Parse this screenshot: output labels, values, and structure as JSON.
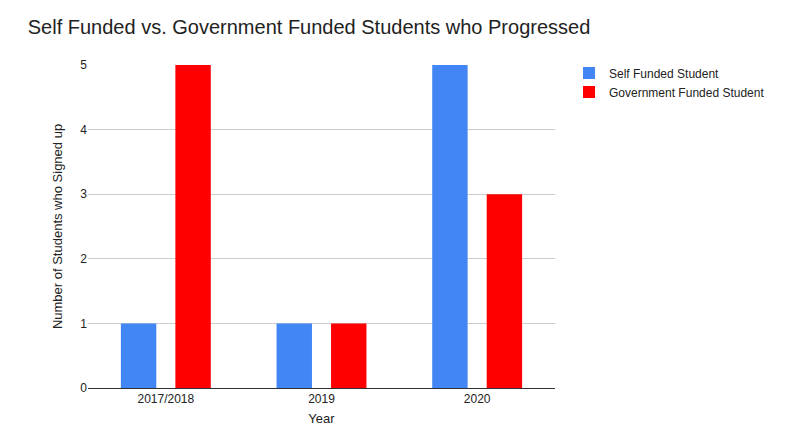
{
  "chart_data": {
    "type": "bar",
    "title": "Self Funded vs. Government Funded Students who Progressed",
    "x_label": "Year",
    "y_label": "Number of Students who Signed up",
    "categories": [
      "2017/2018",
      "2019",
      "2020"
    ],
    "series": [
      {
        "name": "Self Funded Student",
        "color": "#4285f4",
        "values": [
          1,
          1,
          5
        ]
      },
      {
        "name": "Government Funded Student",
        "color": "#ff0000",
        "values": [
          5,
          1,
          3
        ]
      }
    ],
    "ylim": [
      0,
      5
    ],
    "yticks": [
      0,
      1,
      2,
      3,
      4,
      5
    ],
    "grid": true,
    "legend": "right"
  }
}
